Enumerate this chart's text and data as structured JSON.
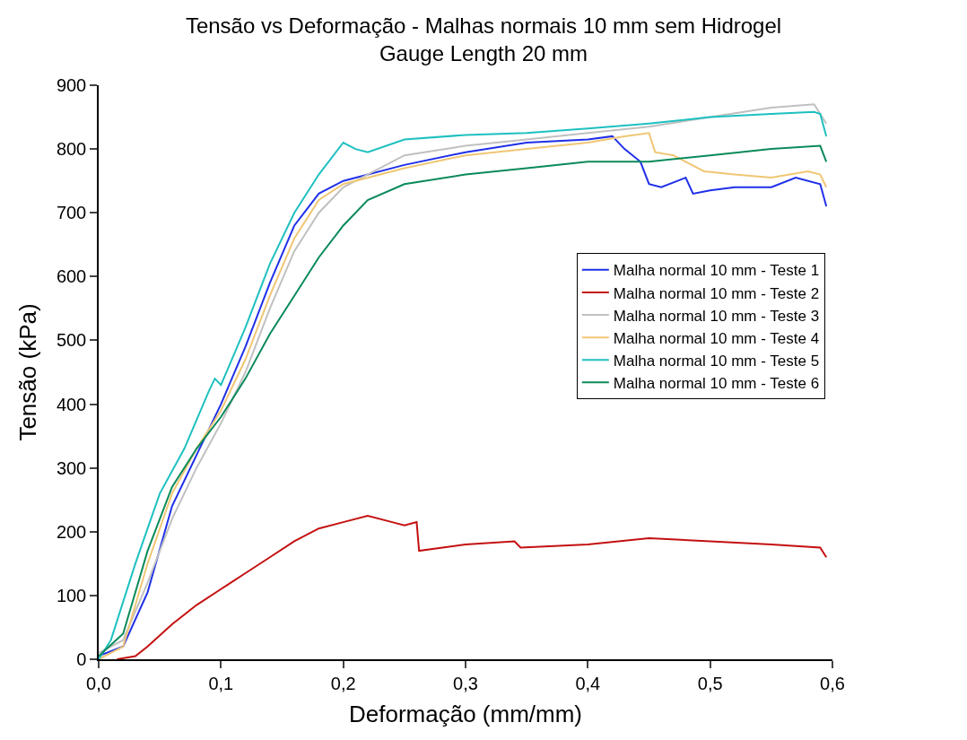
{
  "chart_data": {
    "type": "line",
    "title": "Tensão vs Deformação - Malhas normais 10 mm sem Hidrogel",
    "subtitle": "Gauge Length 20 mm",
    "xlabel": "Deformação (mm/mm)",
    "ylabel": "Tensão (kPa)",
    "xlim": [
      0,
      0.6
    ],
    "ylim": [
      0,
      900
    ],
    "xticks": [
      {
        "value": 0,
        "label": "0,0"
      },
      {
        "value": 0.1,
        "label": "0,1"
      },
      {
        "value": 0.2,
        "label": "0,2"
      },
      {
        "value": 0.3,
        "label": "0,3"
      },
      {
        "value": 0.4,
        "label": "0,4"
      },
      {
        "value": 0.5,
        "label": "0,5"
      },
      {
        "value": 0.6,
        "label": "0,6"
      }
    ],
    "yticks": [
      0,
      100,
      200,
      300,
      400,
      500,
      600,
      700,
      800,
      900
    ],
    "legend": "right",
    "line_style": "solid",
    "marker": "none",
    "series": [
      {
        "name": "Malha normal 10 mm - Teste 1",
        "color": "#1f2fe8",
        "x": [
          0,
          0.02,
          0.04,
          0.06,
          0.08,
          0.1,
          0.12,
          0.14,
          0.16,
          0.18,
          0.2,
          0.25,
          0.3,
          0.35,
          0.4,
          0.42,
          0.43,
          0.443,
          0.45,
          0.46,
          0.48,
          0.486,
          0.5,
          0.52,
          0.55,
          0.57,
          0.59,
          0.595
        ],
        "values": [
          5,
          20,
          105,
          240,
          320,
          400,
          490,
          590,
          680,
          730,
          750,
          775,
          795,
          810,
          815,
          820,
          800,
          780,
          745,
          740,
          755,
          730,
          735,
          740,
          740,
          755,
          745,
          710
        ]
      },
      {
        "name": "Malha normal 10 mm - Teste 2",
        "color": "#c41010",
        "x": [
          0.015,
          0.03,
          0.04,
          0.06,
          0.08,
          0.1,
          0.12,
          0.14,
          0.16,
          0.18,
          0.2,
          0.22,
          0.24,
          0.25,
          0.26,
          0.262,
          0.3,
          0.34,
          0.345,
          0.4,
          0.45,
          0.5,
          0.55,
          0.59,
          0.595
        ],
        "values": [
          0,
          5,
          20,
          55,
          85,
          110,
          135,
          160,
          185,
          205,
          215,
          225,
          215,
          210,
          215,
          170,
          180,
          185,
          175,
          180,
          190,
          185,
          180,
          175,
          160
        ]
      },
      {
        "name": "Malha normal 10 mm - Teste 3",
        "color": "#c0c0c0",
        "x": [
          0,
          0.02,
          0.04,
          0.06,
          0.08,
          0.1,
          0.12,
          0.14,
          0.16,
          0.18,
          0.2,
          0.25,
          0.3,
          0.35,
          0.4,
          0.45,
          0.5,
          0.55,
          0.585,
          0.595
        ],
        "values": [
          10,
          30,
          120,
          220,
          300,
          370,
          450,
          550,
          640,
          700,
          740,
          790,
          805,
          815,
          825,
          835,
          850,
          865,
          870,
          840
        ]
      },
      {
        "name": "Malha normal 10 mm - Teste 4",
        "color": "#f0c674",
        "x": [
          0,
          0.02,
          0.04,
          0.06,
          0.08,
          0.1,
          0.12,
          0.14,
          0.16,
          0.18,
          0.2,
          0.25,
          0.3,
          0.35,
          0.4,
          0.43,
          0.45,
          0.455,
          0.47,
          0.48,
          0.495,
          0.52,
          0.55,
          0.58,
          0.59,
          0.595
        ],
        "values": [
          0,
          20,
          150,
          260,
          330,
          390,
          470,
          570,
          660,
          720,
          745,
          770,
          790,
          800,
          810,
          820,
          825,
          795,
          790,
          780,
          765,
          760,
          755,
          765,
          760,
          740
        ]
      },
      {
        "name": "Malha normal 10 mm - Teste 5",
        "color": "#1ec0c0",
        "x": [
          0,
          0.01,
          0.03,
          0.05,
          0.07,
          0.09,
          0.095,
          0.1,
          0.12,
          0.14,
          0.16,
          0.18,
          0.2,
          0.21,
          0.22,
          0.25,
          0.3,
          0.35,
          0.4,
          0.45,
          0.5,
          0.55,
          0.585,
          0.59,
          0.595
        ],
        "values": [
          0,
          30,
          150,
          260,
          330,
          420,
          440,
          430,
          520,
          620,
          700,
          760,
          810,
          800,
          795,
          815,
          822,
          825,
          832,
          840,
          850,
          855,
          858,
          855,
          820
        ]
      },
      {
        "name": "Malha normal 10 mm - Teste 6",
        "color": "#0a8a5a",
        "x": [
          0,
          0.02,
          0.04,
          0.06,
          0.08,
          0.1,
          0.12,
          0.14,
          0.16,
          0.18,
          0.2,
          0.22,
          0.25,
          0.3,
          0.35,
          0.4,
          0.45,
          0.5,
          0.55,
          0.59,
          0.595
        ],
        "values": [
          5,
          40,
          170,
          270,
          330,
          380,
          440,
          510,
          570,
          630,
          680,
          720,
          745,
          760,
          770,
          780,
          780,
          790,
          800,
          805,
          780
        ]
      }
    ]
  }
}
